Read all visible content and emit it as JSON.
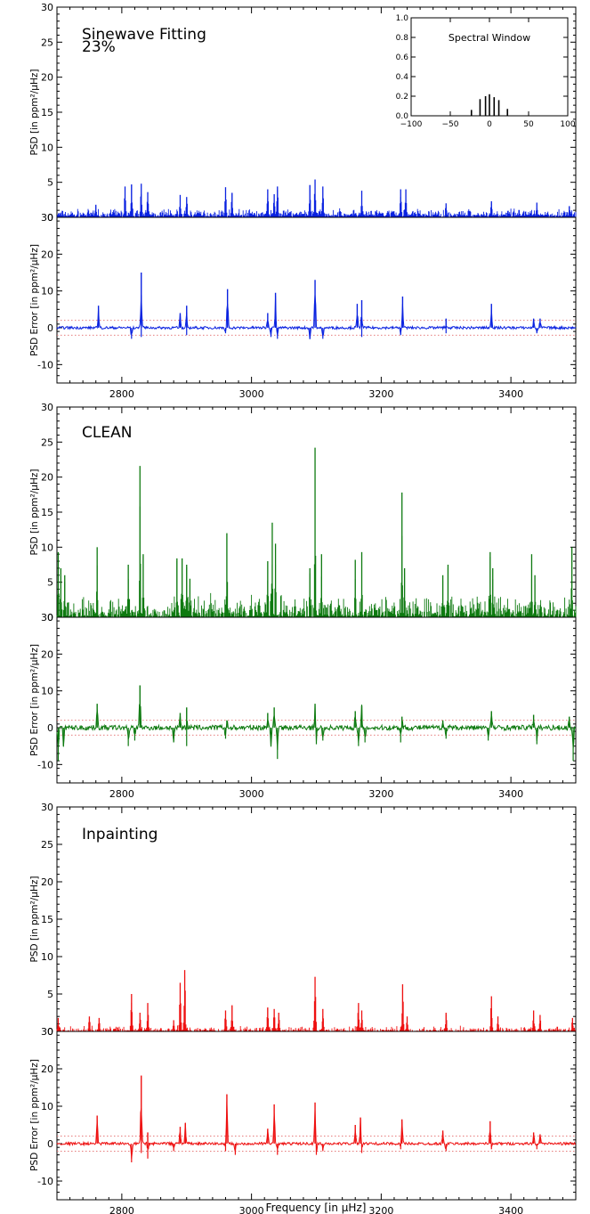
{
  "chart_data": [
    {
      "type": "line",
      "label": "Sinewave Fitting",
      "sublabel": "23%",
      "color": "#0a22e0",
      "xlim": [
        2700,
        3500
      ],
      "xticks": [
        "2800",
        "3000",
        "3200",
        "3400"
      ],
      "top": {
        "ylabel": "PSD [in ppm²/µHz]",
        "ylim": [
          0,
          30
        ],
        "yticks": [
          "0",
          "5",
          "10",
          "15",
          "20",
          "25",
          "30"
        ],
        "peaks": [
          [
            2760,
            1.8
          ],
          [
            2805,
            4.4
          ],
          [
            2815,
            4.7
          ],
          [
            2830,
            4.8
          ],
          [
            2840,
            3.6
          ],
          [
            2890,
            3.2
          ],
          [
            2900,
            2.9
          ],
          [
            2960,
            4.3
          ],
          [
            2970,
            3.5
          ],
          [
            3025,
            4.0
          ],
          [
            3035,
            3.3
          ],
          [
            3040,
            4.4
          ],
          [
            3090,
            4.6
          ],
          [
            3098,
            5.4
          ],
          [
            3110,
            4.4
          ],
          [
            3170,
            3.8
          ],
          [
            3230,
            4.0
          ],
          [
            3238,
            4.0
          ],
          [
            3300,
            2.0
          ],
          [
            3370,
            2.3
          ],
          [
            3440,
            2.1
          ],
          [
            3490,
            1.6
          ]
        ]
      },
      "bottom": {
        "ylabel": "PSD Error [in ppm²/µHz]",
        "ylim": [
          -15,
          30
        ],
        "yticks": [
          "-10",
          "0",
          "10",
          "20",
          "30"
        ],
        "threshold": 2,
        "peaks": [
          [
            2764,
            6
          ],
          [
            2830,
            15
          ],
          [
            2890,
            4
          ],
          [
            2900,
            6
          ],
          [
            2963,
            10.5
          ],
          [
            3025,
            4
          ],
          [
            3037,
            9.5
          ],
          [
            3098,
            13
          ],
          [
            3163,
            6.5
          ],
          [
            3170,
            7.5
          ],
          [
            3233,
            8.5
          ],
          [
            3300,
            2.5
          ],
          [
            3370,
            6.5
          ],
          [
            3435,
            2.5
          ],
          [
            3445,
            2.5
          ]
        ],
        "dips": [
          [
            2815,
            -3
          ],
          [
            2830,
            -2.5
          ],
          [
            2900,
            -2
          ],
          [
            2960,
            -1.5
          ],
          [
            3030,
            -2.5
          ],
          [
            3040,
            -3
          ],
          [
            3090,
            -3
          ],
          [
            3110,
            -3
          ],
          [
            3170,
            -2.5
          ],
          [
            3230,
            -2
          ],
          [
            3300,
            -1.5
          ],
          [
            3440,
            -1.5
          ]
        ]
      }
    },
    {
      "type": "line",
      "label": "CLEAN",
      "color": "#0e7a10",
      "xlim": [
        2700,
        3500
      ],
      "xticks": [
        "2800",
        "3000",
        "3200",
        "3400"
      ],
      "top": {
        "ylabel": "PSD [in ppm²/µHz]",
        "ylim": [
          0,
          30
        ],
        "yticks": [
          "0",
          "5",
          "10",
          "15",
          "20",
          "25",
          "30"
        ],
        "peaks": [
          [
            2702,
            9.3
          ],
          [
            2706,
            7
          ],
          [
            2712,
            6
          ],
          [
            2762,
            10
          ],
          [
            2810,
            7.5
          ],
          [
            2828,
            21.6
          ],
          [
            2833,
            9
          ],
          [
            2885,
            8.4
          ],
          [
            2893,
            8.4
          ],
          [
            2900,
            7.5
          ],
          [
            2905,
            5.5
          ],
          [
            2962,
            12
          ],
          [
            3025,
            8
          ],
          [
            3032,
            13.5
          ],
          [
            3037,
            10.5
          ],
          [
            3090,
            7
          ],
          [
            3098,
            24.2
          ],
          [
            3108,
            9
          ],
          [
            3160,
            8.2
          ],
          [
            3170,
            9.3
          ],
          [
            3232,
            17.8
          ],
          [
            3236,
            7
          ],
          [
            3295,
            6
          ],
          [
            3303,
            7.5
          ],
          [
            3368,
            9.3
          ],
          [
            3372,
            7
          ],
          [
            3432,
            9
          ],
          [
            3437,
            6
          ],
          [
            3494,
            10
          ]
        ]
      },
      "bottom": {
        "ylabel": "PSD Error [in ppm²/µHz]",
        "ylim": [
          -15,
          30
        ],
        "yticks": [
          "-10",
          "0",
          "10",
          "20",
          "30"
        ],
        "threshold": 2,
        "peaks": [
          [
            2762,
            6.5
          ],
          [
            2828,
            11.5
          ],
          [
            2890,
            4
          ],
          [
            2900,
            5.5
          ],
          [
            2962,
            2
          ],
          [
            3025,
            4
          ],
          [
            3035,
            5.5
          ],
          [
            3098,
            6.5
          ],
          [
            3160,
            4.5
          ],
          [
            3170,
            6
          ],
          [
            3232,
            3
          ],
          [
            3295,
            2
          ],
          [
            3370,
            4.5
          ],
          [
            3435,
            3.5
          ],
          [
            3490,
            3
          ]
        ],
        "dips": [
          [
            2702,
            -9
          ],
          [
            2710,
            -5
          ],
          [
            2810,
            -5
          ],
          [
            2820,
            -3.5
          ],
          [
            2880,
            -4
          ],
          [
            2900,
            -5
          ],
          [
            2960,
            -3
          ],
          [
            3030,
            -5
          ],
          [
            3040,
            -8.5
          ],
          [
            3100,
            -4.5
          ],
          [
            3110,
            -3.5
          ],
          [
            3165,
            -5
          ],
          [
            3175,
            -4
          ],
          [
            3230,
            -4
          ],
          [
            3300,
            -3
          ],
          [
            3365,
            -3.5
          ],
          [
            3440,
            -4.5
          ],
          [
            3496,
            -9
          ]
        ]
      }
    },
    {
      "type": "line",
      "label": "Inpainting",
      "color": "#ee1111",
      "xlim": [
        2700,
        3500
      ],
      "xticks": [
        "2800",
        "3000",
        "3200",
        "3400"
      ],
      "xlabel": "Frequency [in µHz]",
      "top": {
        "ylabel": "PSD [in ppm²/µHz]",
        "ylim": [
          0,
          30
        ],
        "yticks": [
          "0",
          "5",
          "10",
          "15",
          "20",
          "25",
          "30"
        ],
        "peaks": [
          [
            2702,
            1.8
          ],
          [
            2750,
            2
          ],
          [
            2765,
            1.8
          ],
          [
            2815,
            5
          ],
          [
            2828,
            2.5
          ],
          [
            2840,
            3.8
          ],
          [
            2880,
            1.5
          ],
          [
            2890,
            6.5
          ],
          [
            2897,
            8.2
          ],
          [
            2960,
            2.8
          ],
          [
            2970,
            3.5
          ],
          [
            3025,
            3.2
          ],
          [
            3035,
            3
          ],
          [
            3042,
            2.5
          ],
          [
            3098,
            7.3
          ],
          [
            3110,
            3
          ],
          [
            3165,
            3.8
          ],
          [
            3170,
            2.8
          ],
          [
            3233,
            6.3
          ],
          [
            3240,
            2
          ],
          [
            3300,
            2.5
          ],
          [
            3370,
            4.7
          ],
          [
            3380,
            2
          ],
          [
            3435,
            2.8
          ],
          [
            3445,
            2.2
          ],
          [
            3495,
            1.8
          ]
        ]
      },
      "bottom": {
        "ylabel": "PSD Error [in ppm²/µHz]",
        "ylim": [
          -15,
          30
        ],
        "yticks": [
          "-10",
          "0",
          "10",
          "20",
          "30"
        ],
        "threshold": 2,
        "peaks": [
          [
            2762,
            7.5
          ],
          [
            2830,
            18.2
          ],
          [
            2840,
            3
          ],
          [
            2890,
            4.5
          ],
          [
            2898,
            5.5
          ],
          [
            2962,
            13.2
          ],
          [
            3025,
            4
          ],
          [
            3035,
            10.5
          ],
          [
            3098,
            11
          ],
          [
            3160,
            5
          ],
          [
            3168,
            7
          ],
          [
            3232,
            6.5
          ],
          [
            3295,
            3.5
          ],
          [
            3368,
            6
          ],
          [
            3435,
            3
          ],
          [
            3445,
            2.5
          ]
        ],
        "dips": [
          [
            2815,
            -5
          ],
          [
            2830,
            -2.5
          ],
          [
            2840,
            -4
          ],
          [
            2880,
            -2
          ],
          [
            2960,
            -2
          ],
          [
            2975,
            -3
          ],
          [
            3040,
            -3
          ],
          [
            3100,
            -3
          ],
          [
            3110,
            -2
          ],
          [
            3170,
            -2.5
          ],
          [
            3230,
            -1.5
          ],
          [
            3300,
            -2
          ],
          [
            3370,
            -1.5
          ],
          [
            3440,
            -1.5
          ]
        ]
      }
    }
  ],
  "inset": {
    "label": "Spectral Window",
    "xlim": [
      -100,
      100
    ],
    "ylim": [
      0,
      1
    ],
    "xticks": [
      "−100",
      "−50",
      "0",
      "50",
      "100"
    ],
    "yticks": [
      "0.0",
      "0.2",
      "0.4",
      "0.6",
      "0.8",
      "1.0"
    ],
    "bars": [
      [
        -23,
        0.06
      ],
      [
        -12,
        0.17
      ],
      [
        -5,
        0.2
      ],
      [
        0,
        0.22
      ],
      [
        6,
        0.19
      ],
      [
        12,
        0.16
      ],
      [
        23,
        0.07
      ]
    ]
  }
}
